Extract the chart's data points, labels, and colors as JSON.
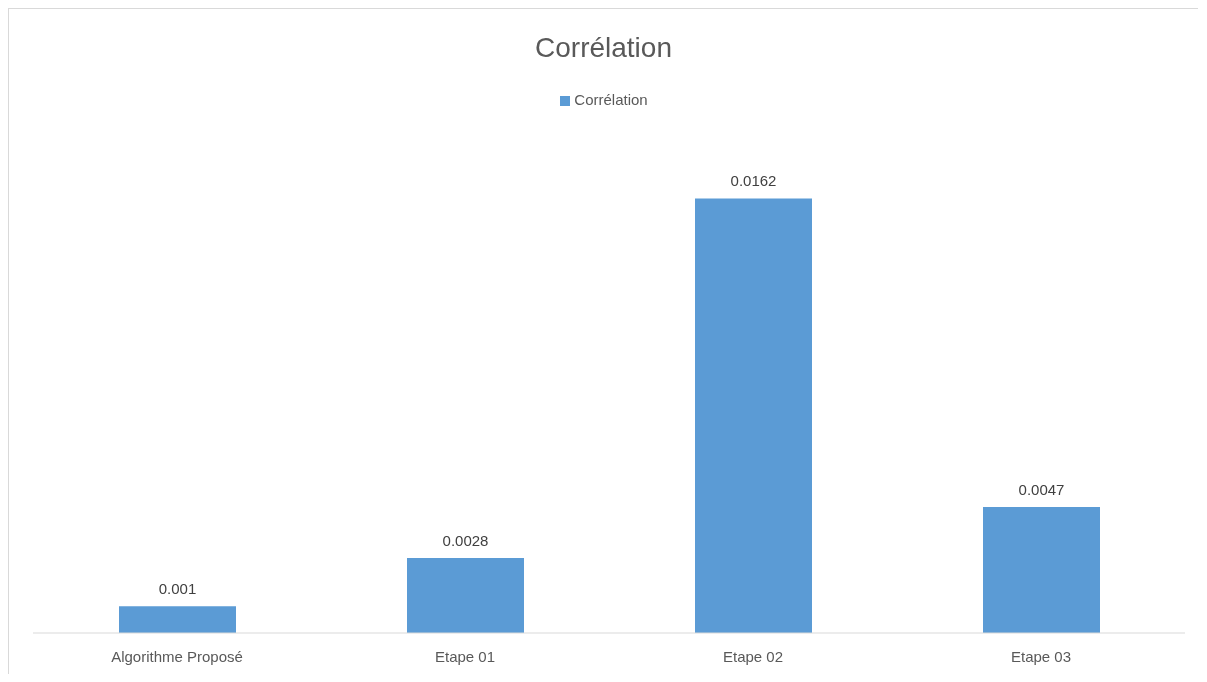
{
  "chart_data": {
    "type": "bar",
    "title": "Corrélation",
    "categories": [
      "Algorithme Proposé",
      "Etape 01",
      "Etape 02",
      "Etape  03"
    ],
    "series": [
      {
        "name": "Corrélation",
        "color": "#5b9bd5",
        "values": [
          0.001,
          0.0028,
          0.0162,
          0.0047
        ]
      }
    ],
    "data_labels": true,
    "legend": "top",
    "grid": false
  }
}
